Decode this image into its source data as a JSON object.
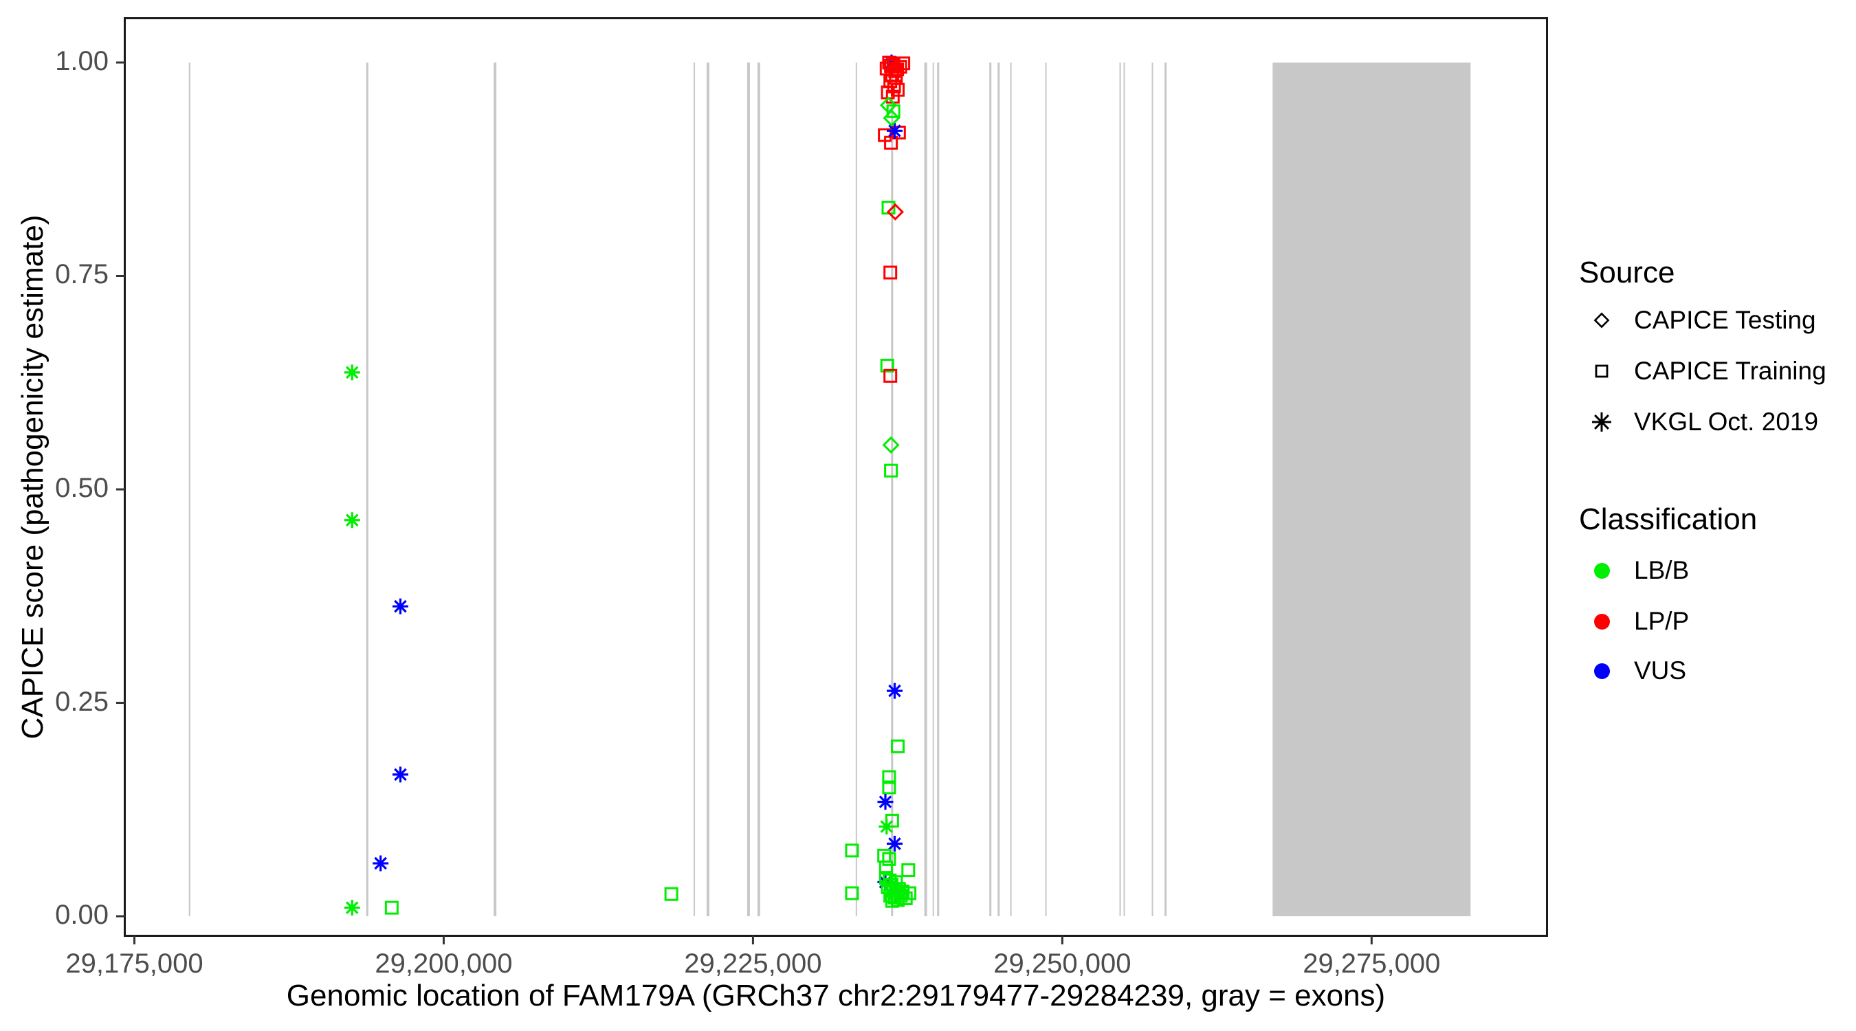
{
  "figure": {
    "x_title": "Genomic location of FAM179A (GRCh37 chr2:29179477-29284239, gray = exons)",
    "y_title": "CAPICE score (pathogenicity estimate)"
  },
  "legend": {
    "source": {
      "title": "Source",
      "items": [
        {
          "label": "CAPICE Testing",
          "marker": "diamond"
        },
        {
          "label": "CAPICE Training",
          "marker": "square"
        },
        {
          "label": "VKGL Oct. 2019",
          "marker": "asterisk"
        }
      ]
    },
    "classification": {
      "title": "Classification",
      "items": [
        {
          "label": "LB/B",
          "color_key": "lbb",
          "hex": "#00EE00"
        },
        {
          "label": "LP/P",
          "color_key": "lpp",
          "hex": "#FF0000"
        },
        {
          "label": "VUS",
          "color_key": "vus",
          "hex": "#0000FF"
        }
      ]
    }
  },
  "colors": {
    "lbb": "#00EE00",
    "lpp": "#FF0000",
    "vus": "#0000FF",
    "exon": "#C8C8C8",
    "axis_text": "#4D4D4D",
    "tick_mark": "#333333",
    "panel_border": "#1A1A1A",
    "legend_icon": "#000000"
  },
  "chart_data": {
    "type": "scatter",
    "title": "",
    "xlabel": "Genomic location of FAM179A (GRCh37 chr2:29179477-29284239, gray = exons)",
    "ylabel": "CAPICE score (pathogenicity estimate)",
    "xlim": [
      29174250,
      29289150
    ],
    "ylim": [
      -0.0225,
      1.0515
    ],
    "grid": false,
    "legend_position": "right",
    "x_ticks": [
      {
        "value": 29175000,
        "label": "29,175,000"
      },
      {
        "value": 29200000,
        "label": "29,200,000"
      },
      {
        "value": 29225000,
        "label": "29,225,000"
      },
      {
        "value": 29250000,
        "label": "29,250,000"
      },
      {
        "value": 29275000,
        "label": "29,275,000"
      }
    ],
    "y_ticks": [
      {
        "value": 0.0,
        "label": "0.00"
      },
      {
        "value": 0.25,
        "label": "0.25"
      },
      {
        "value": 0.5,
        "label": "0.50"
      },
      {
        "value": 0.75,
        "label": "0.75"
      },
      {
        "value": 1.0,
        "label": "1.00"
      }
    ],
    "exon_y_span": [
      0,
      1
    ],
    "exons": [
      {
        "start": 29179400,
        "end": 29179520
      },
      {
        "start": 29193740,
        "end": 29193910
      },
      {
        "start": 29204040,
        "end": 29204260
      },
      {
        "start": 29220200,
        "end": 29220310
      },
      {
        "start": 29221250,
        "end": 29221470
      },
      {
        "start": 29224530,
        "end": 29224750
      },
      {
        "start": 29225360,
        "end": 29225580
      },
      {
        "start": 29233300,
        "end": 29233410
      },
      {
        "start": 29236160,
        "end": 29236330
      },
      {
        "start": 29238850,
        "end": 29239070
      },
      {
        "start": 29239520,
        "end": 29239630
      },
      {
        "start": 29239880,
        "end": 29240050
      },
      {
        "start": 29244100,
        "end": 29244270
      },
      {
        "start": 29244770,
        "end": 29244940
      },
      {
        "start": 29245790,
        "end": 29245900
      },
      {
        "start": 29248620,
        "end": 29248730
      },
      {
        "start": 29254620,
        "end": 29254730
      },
      {
        "start": 29254950,
        "end": 29255060
      },
      {
        "start": 29257230,
        "end": 29257340
      },
      {
        "start": 29258260,
        "end": 29258430
      },
      {
        "start": 29267000,
        "end": 29283000
      }
    ],
    "points": [
      {
        "bp": 29192600,
        "score": 0.637,
        "source": "vkgl",
        "cls": "LB/B"
      },
      {
        "bp": 29192600,
        "score": 0.464,
        "source": "vkgl",
        "cls": "LB/B"
      },
      {
        "bp": 29196500,
        "score": 0.363,
        "source": "vkgl",
        "cls": "VUS"
      },
      {
        "bp": 29196500,
        "score": 0.166,
        "source": "vkgl",
        "cls": "VUS"
      },
      {
        "bp": 29194900,
        "score": 0.062,
        "source": "vkgl",
        "cls": "VUS"
      },
      {
        "bp": 29192600,
        "score": 0.01,
        "source": "vkgl",
        "cls": "LB/B"
      },
      {
        "bp": 29195800,
        "score": 0.01,
        "source": "training",
        "cls": "LB/B"
      },
      {
        "bp": 29218400,
        "score": 0.026,
        "source": "training",
        "cls": "LB/B"
      },
      {
        "bp": 29233000,
        "score": 0.077,
        "source": "training",
        "cls": "LB/B"
      },
      {
        "bp": 29233000,
        "score": 0.027,
        "source": "training",
        "cls": "LB/B"
      },
      {
        "bp": 29236200,
        "score": 1.0,
        "source": "vkgl",
        "cls": "VUS"
      },
      {
        "bp": 29236000,
        "score": 1.0,
        "source": "training",
        "cls": "LP/P"
      },
      {
        "bp": 29236350,
        "score": 0.998,
        "source": "training",
        "cls": "LP/P"
      },
      {
        "bp": 29235800,
        "score": 0.993,
        "source": "training",
        "cls": "LP/P"
      },
      {
        "bp": 29236150,
        "score": 0.996,
        "source": "training",
        "cls": "LP/P"
      },
      {
        "bp": 29236500,
        "score": 0.99,
        "source": "training",
        "cls": "LP/P"
      },
      {
        "bp": 29236250,
        "score": 0.985,
        "source": "training",
        "cls": "LP/P"
      },
      {
        "bp": 29236650,
        "score": 0.992,
        "source": "training",
        "cls": "LP/P"
      },
      {
        "bp": 29236100,
        "score": 0.978,
        "source": "training",
        "cls": "LP/P"
      },
      {
        "bp": 29236400,
        "score": 0.972,
        "source": "training",
        "cls": "LP/P"
      },
      {
        "bp": 29236550,
        "score": 0.982,
        "source": "training",
        "cls": "LP/P"
      },
      {
        "bp": 29236900,
        "score": 0.995,
        "source": "training",
        "cls": "LP/P"
      },
      {
        "bp": 29237150,
        "score": 0.999,
        "source": "training",
        "cls": "LP/P"
      },
      {
        "bp": 29235900,
        "score": 0.965,
        "source": "training",
        "cls": "LP/P"
      },
      {
        "bp": 29236300,
        "score": 0.96,
        "source": "training",
        "cls": "LP/P"
      },
      {
        "bp": 29236700,
        "score": 0.968,
        "source": "training",
        "cls": "LP/P"
      },
      {
        "bp": 29235650,
        "score": 0.915,
        "source": "training",
        "cls": "LP/P"
      },
      {
        "bp": 29236150,
        "score": 0.906,
        "source": "training",
        "cls": "LP/P"
      },
      {
        "bp": 29236800,
        "score": 0.918,
        "source": "training",
        "cls": "LP/P"
      },
      {
        "bp": 29236450,
        "score": 0.92,
        "source": "vkgl",
        "cls": "VUS"
      },
      {
        "bp": 29235950,
        "score": 0.95,
        "source": "testing",
        "cls": "LB/B"
      },
      {
        "bp": 29236350,
        "score": 0.943,
        "source": "training",
        "cls": "LB/B"
      },
      {
        "bp": 29236200,
        "score": 0.935,
        "source": "testing",
        "cls": "LB/B"
      },
      {
        "bp": 29235950,
        "score": 0.83,
        "source": "training",
        "cls": "LB/B"
      },
      {
        "bp": 29236500,
        "score": 0.825,
        "source": "testing",
        "cls": "LP/P"
      },
      {
        "bp": 29236100,
        "score": 0.754,
        "source": "training",
        "cls": "LP/P"
      },
      {
        "bp": 29235850,
        "score": 0.645,
        "source": "training",
        "cls": "LB/B"
      },
      {
        "bp": 29236100,
        "score": 0.633,
        "source": "training",
        "cls": "LP/P"
      },
      {
        "bp": 29236150,
        "score": 0.552,
        "source": "testing",
        "cls": "LB/B"
      },
      {
        "bp": 29236150,
        "score": 0.522,
        "source": "training",
        "cls": "LB/B"
      },
      {
        "bp": 29236450,
        "score": 0.264,
        "source": "vkgl",
        "cls": "VUS"
      },
      {
        "bp": 29236700,
        "score": 0.199,
        "source": "training",
        "cls": "LB/B"
      },
      {
        "bp": 29236000,
        "score": 0.163,
        "source": "training",
        "cls": "LB/B"
      },
      {
        "bp": 29236000,
        "score": 0.151,
        "source": "training",
        "cls": "LB/B"
      },
      {
        "bp": 29235700,
        "score": 0.134,
        "source": "vkgl",
        "cls": "VUS"
      },
      {
        "bp": 29236250,
        "score": 0.112,
        "source": "training",
        "cls": "LB/B"
      },
      {
        "bp": 29235800,
        "score": 0.105,
        "source": "vkgl",
        "cls": "LB/B"
      },
      {
        "bp": 29236450,
        "score": 0.085,
        "source": "vkgl",
        "cls": "VUS"
      },
      {
        "bp": 29235600,
        "score": 0.071,
        "source": "training",
        "cls": "LB/B"
      },
      {
        "bp": 29236000,
        "score": 0.067,
        "source": "training",
        "cls": "LB/B"
      },
      {
        "bp": 29235750,
        "score": 0.057,
        "source": "training",
        "cls": "LB/B"
      },
      {
        "bp": 29237550,
        "score": 0.054,
        "source": "training",
        "cls": "LB/B"
      },
      {
        "bp": 29235700,
        "score": 0.04,
        "source": "vkgl",
        "cls": "VUS"
      },
      {
        "bp": 29235750,
        "score": 0.045,
        "source": "training",
        "cls": "LB/B"
      },
      {
        "bp": 29235900,
        "score": 0.034,
        "source": "training",
        "cls": "LB/B"
      },
      {
        "bp": 29236050,
        "score": 0.042,
        "source": "training",
        "cls": "LB/B"
      },
      {
        "bp": 29236100,
        "score": 0.024,
        "source": "training",
        "cls": "LB/B"
      },
      {
        "bp": 29236200,
        "score": 0.037,
        "source": "training",
        "cls": "LB/B"
      },
      {
        "bp": 29236250,
        "score": 0.018,
        "source": "training",
        "cls": "LB/B"
      },
      {
        "bp": 29236350,
        "score": 0.03,
        "source": "training",
        "cls": "LB/B"
      },
      {
        "bp": 29236450,
        "score": 0.022,
        "source": "training",
        "cls": "LB/B"
      },
      {
        "bp": 29236550,
        "score": 0.04,
        "source": "training",
        "cls": "LB/B"
      },
      {
        "bp": 29236600,
        "score": 0.027,
        "source": "training",
        "cls": "LB/B"
      },
      {
        "bp": 29236700,
        "score": 0.019,
        "source": "training",
        "cls": "LB/B"
      },
      {
        "bp": 29236800,
        "score": 0.032,
        "source": "training",
        "cls": "LB/B"
      },
      {
        "bp": 29236950,
        "score": 0.024,
        "source": "training",
        "cls": "LB/B"
      },
      {
        "bp": 29237100,
        "score": 0.029,
        "source": "training",
        "cls": "LB/B"
      },
      {
        "bp": 29237350,
        "score": 0.021,
        "source": "training",
        "cls": "LB/B"
      },
      {
        "bp": 29237650,
        "score": 0.027,
        "source": "training",
        "cls": "LB/B"
      }
    ]
  }
}
